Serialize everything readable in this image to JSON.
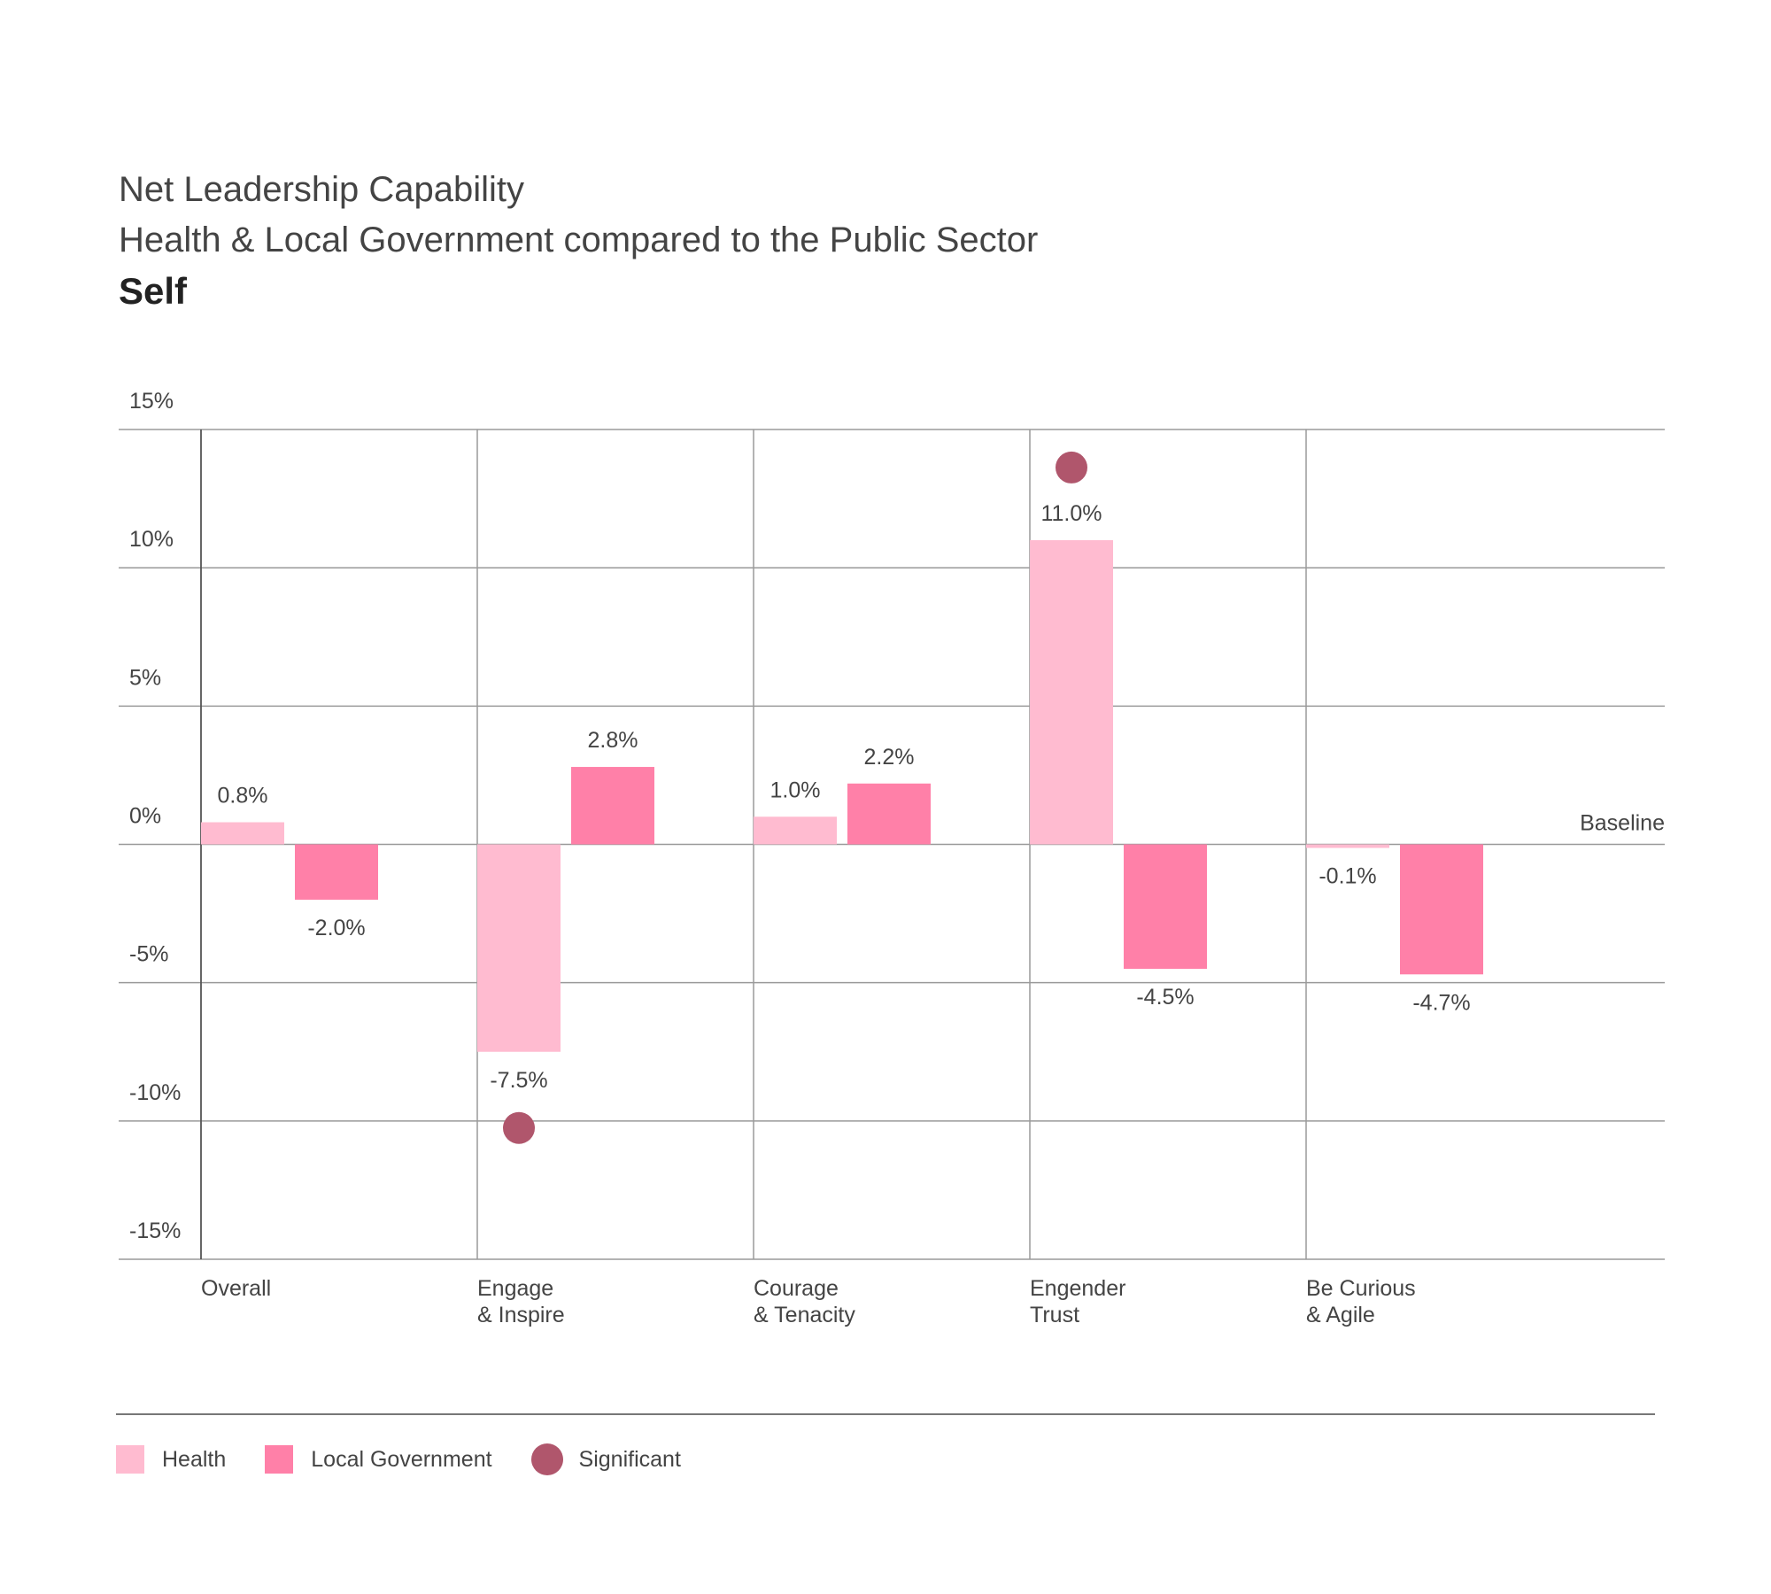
{
  "title": {
    "line1": "Net Leadership Capability",
    "line2": "Health & Local Government compared to the Public Sector",
    "line3": "Self"
  },
  "colors": {
    "health": "#FFBBD0",
    "local_government": "#FF80A8",
    "significant": "#B0566C",
    "grid": "#9a9a9a"
  },
  "chart_data": {
    "type": "bar",
    "categories": [
      "Overall",
      "Engage\n& Inspire",
      "Courage\n& Tenacity",
      "Engender\nTrust",
      "Be Curious\n& Agile"
    ],
    "series": [
      {
        "name": "Health",
        "values": [
          0.8,
          -7.5,
          1.0,
          11.0,
          -0.1
        ]
      },
      {
        "name": "Local Government",
        "values": [
          -2.0,
          2.8,
          2.2,
          -4.5,
          -4.7
        ]
      }
    ],
    "data_labels": {
      "Health": [
        "0.8%",
        "-7.5%",
        "1.0%",
        "11.0%",
        "-0.1%"
      ],
      "Local Government": [
        "-2.0%",
        "2.8%",
        "2.2%",
        "-4.5%",
        "-4.7%"
      ]
    },
    "significant": [
      {
        "category_index": 1,
        "series": "Health"
      },
      {
        "category_index": 3,
        "series": "Health"
      }
    ],
    "ylim": [
      -15,
      15
    ],
    "yticks": [
      15,
      10,
      5,
      0,
      -5,
      -10,
      -15
    ],
    "ytick_labels": [
      "15%",
      "10%",
      "5%",
      "0%",
      "-5%",
      "-10%",
      "-15%"
    ],
    "baseline_label": "Baseline",
    "grid": true,
    "legend": {
      "position": "bottom-left",
      "items": [
        "Health",
        "Local Government",
        "Significant"
      ]
    }
  }
}
